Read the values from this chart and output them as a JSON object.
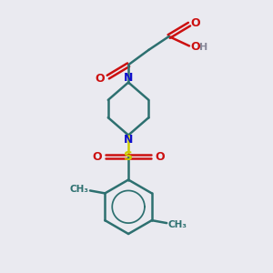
{
  "bg_color": "#eaeaf0",
  "bond_color": "#2d7070",
  "N_color": "#1010cc",
  "O_color": "#cc1010",
  "S_color": "#cccc00",
  "H_color": "#888899",
  "bond_width": 1.8,
  "fig_w": 3.0,
  "fig_h": 3.0,
  "dpi": 100,
  "xlim": [
    0,
    10
  ],
  "ylim": [
    0,
    10
  ]
}
